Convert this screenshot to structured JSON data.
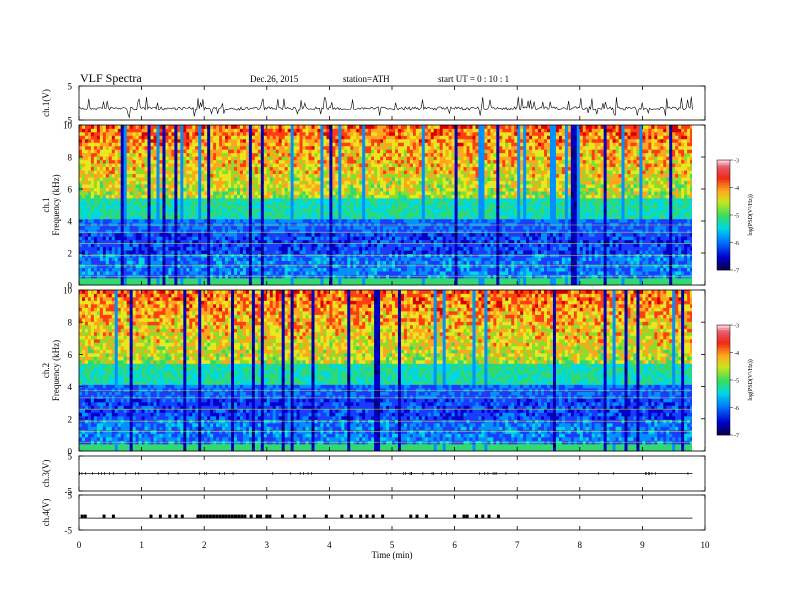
{
  "header": {
    "title": "VLF  Spectra",
    "date": "Dec.26, 2015",
    "station": "station=ATH",
    "start": "start  UT =   0 : 10 : 1"
  },
  "chart_data": {
    "type": "multi-panel time series and spectrograms",
    "x_axis": {
      "label": "Time  (min)",
      "range": [
        0,
        10
      ],
      "ticks": [
        "0",
        "1",
        "2",
        "3",
        "4",
        "5",
        "6",
        "7",
        "8",
        "9",
        "10"
      ]
    },
    "panels": [
      {
        "id": "ch1-waveform",
        "type": "line",
        "ylabel": "ch.1(V)",
        "ylim": [
          -5,
          5
        ],
        "ytick_labels": [
          "5",
          "-5"
        ],
        "baseline": -1.6,
        "data_end_min": 9.8
      },
      {
        "id": "ch1-spectrogram",
        "type": "heatmap",
        "ylabel": "ch.1\nFrequency  (kHz)",
        "ylim": [
          0,
          10
        ],
        "ytick_labels": [
          "0",
          "2",
          "4",
          "6",
          "8",
          "10"
        ],
        "colorbar": {
          "label": "log(PSD(V²/Hz))",
          "range": [
            -7,
            -3
          ],
          "tick_labels": [
            "-3",
            "-4",
            "-5",
            "-6",
            "-7"
          ]
        }
      },
      {
        "id": "ch2-spectrogram",
        "type": "heatmap",
        "ylabel": "ch.2\nFrequency  (kHz)",
        "ylim": [
          0,
          10
        ],
        "ytick_labels": [
          "0",
          "2",
          "4",
          "6",
          "8",
          "10"
        ],
        "colorbar": {
          "label": "log(PSD(V²/Hz))",
          "range": [
            -7,
            -3
          ],
          "tick_labels": [
            "-3",
            "-4",
            "-5",
            "-6",
            "-7"
          ]
        }
      },
      {
        "id": "ch3-waveform",
        "type": "line",
        "ylabel": "ch.3(V)",
        "ylim": [
          -5,
          5
        ],
        "ytick_labels": [
          "5",
          "-5"
        ],
        "baseline": 0
      },
      {
        "id": "ch4-waveform",
        "type": "line",
        "ylabel": "ch.4(V)",
        "ylim": [
          -5,
          5
        ],
        "ytick_labels": [
          "5",
          "-5"
        ],
        "baseline": -1.6,
        "pulse_times_min": [
          0.05,
          0.1,
          0.4,
          0.55,
          1.15,
          1.3,
          1.45,
          1.55,
          1.65,
          1.9,
          1.95,
          2.0,
          2.05,
          2.1,
          2.15,
          2.2,
          2.25,
          2.3,
          2.35,
          2.4,
          2.45,
          2.5,
          2.55,
          2.6,
          2.65,
          2.75,
          2.85,
          2.9,
          3.0,
          3.05,
          3.25,
          3.45,
          3.6,
          3.95,
          4.2,
          4.35,
          4.5,
          4.6,
          4.7,
          4.85,
          5.3,
          5.4,
          5.55,
          6.0,
          6.15,
          6.2,
          6.35,
          6.45,
          6.55,
          6.7
        ]
      }
    ]
  }
}
